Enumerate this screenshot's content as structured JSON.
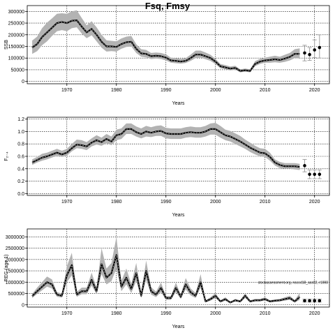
{
  "title": "Fsq, Fmsy",
  "chart_data": [
    {
      "id": "ssb",
      "type": "line",
      "xlabel": "Years",
      "ylabel": "SSB",
      "xlim": [
        1962,
        2023
      ],
      "ylim": [
        -10000,
        325000
      ],
      "xticks": [
        1970,
        1980,
        1990,
        2000,
        2010,
        2020
      ],
      "yticks": [
        0,
        50000,
        100000,
        150000,
        200000,
        250000,
        300000
      ],
      "grid": true,
      "years": [
        1963,
        1964,
        1965,
        1966,
        1967,
        1968,
        1969,
        1970,
        1971,
        1972,
        1973,
        1974,
        1975,
        1976,
        1977,
        1978,
        1979,
        1980,
        1981,
        1982,
        1983,
        1984,
        1985,
        1986,
        1987,
        1988,
        1989,
        1990,
        1991,
        1992,
        1993,
        1994,
        1995,
        1996,
        1997,
        1998,
        1999,
        2000,
        2001,
        2002,
        2003,
        2004,
        2005,
        2006,
        2007,
        2008,
        2009,
        2010,
        2011,
        2012,
        2013,
        2014,
        2015,
        2016,
        2017
      ],
      "estimate": [
        145000,
        160000,
        190000,
        210000,
        230000,
        250000,
        255000,
        250000,
        260000,
        262000,
        235000,
        210000,
        225000,
        200000,
        170000,
        150000,
        150000,
        148000,
        160000,
        168000,
        170000,
        140000,
        120000,
        118000,
        108000,
        110000,
        108000,
        102000,
        90000,
        88000,
        85000,
        88000,
        100000,
        115000,
        115000,
        108000,
        100000,
        85000,
        65000,
        60000,
        55000,
        58000,
        45000,
        48000,
        45000,
        75000,
        85000,
        90000,
        92000,
        95000,
        92000,
        98000,
        105000,
        118000,
        118000
      ],
      "lower": [
        118000,
        130000,
        155000,
        172000,
        195000,
        215000,
        220000,
        215000,
        228000,
        232000,
        205000,
        185000,
        198000,
        172000,
        145000,
        128000,
        130000,
        128000,
        140000,
        148000,
        150000,
        122000,
        106000,
        103000,
        96000,
        98000,
        96000,
        90000,
        80000,
        78000,
        76000,
        79000,
        88000,
        100000,
        102000,
        95000,
        88000,
        74000,
        56000,
        52000,
        47000,
        50000,
        39000,
        42000,
        39000,
        65000,
        75000,
        80000,
        80000,
        82000,
        80000,
        84000,
        90000,
        100000,
        98000
      ],
      "upper": [
        175000,
        192000,
        228000,
        252000,
        270000,
        290000,
        292000,
        290000,
        300000,
        305000,
        272000,
        240000,
        258000,
        232000,
        200000,
        176000,
        174000,
        172000,
        184000,
        192000,
        195000,
        160000,
        138000,
        135000,
        122000,
        124000,
        122000,
        116000,
        102000,
        100000,
        97000,
        100000,
        115000,
        132000,
        132000,
        124000,
        114000,
        97000,
        75000,
        70000,
        64000,
        67000,
        52000,
        55000,
        52000,
        87000,
        97000,
        102000,
        106000,
        110000,
        106000,
        114000,
        122000,
        138000,
        142000
      ],
      "projection_points": [
        {
          "x": 2018,
          "y": 122000
        },
        {
          "x": 2019,
          "y": 115000
        },
        {
          "x": 2020,
          "y": 135000
        },
        {
          "x": 2021,
          "y": 145000
        }
      ],
      "projection_ranges": [
        {
          "x": 2018,
          "lo": 88000,
          "hi": 155000
        },
        {
          "x": 2019,
          "lo": 90000,
          "hi": 145000
        },
        {
          "x": 2020,
          "lo": 102000,
          "hi": 178000
        },
        {
          "x": 2021,
          "lo": 100000,
          "hi": 200000
        }
      ]
    },
    {
      "id": "f",
      "type": "line",
      "xlabel": "Years",
      "ylabel": "F₂₋₄",
      "xlim": [
        1962,
        2023
      ],
      "ylim": [
        -0.03,
        1.23
      ],
      "xticks": [
        1970,
        1980,
        1990,
        2000,
        2010,
        2020
      ],
      "yticks": [
        0.0,
        0.2,
        0.4,
        0.6,
        0.8,
        1.0,
        1.2
      ],
      "ytick_labels": [
        "0.0",
        "0.2",
        "0.4",
        "0.6",
        "0.8",
        "1.0",
        "1.2"
      ],
      "grid": true,
      "years": [
        1963,
        1964,
        1965,
        1966,
        1967,
        1968,
        1969,
        1970,
        1971,
        1972,
        1973,
        1974,
        1975,
        1976,
        1977,
        1978,
        1979,
        1980,
        1981,
        1982,
        1983,
        1984,
        1985,
        1986,
        1987,
        1988,
        1989,
        1990,
        1991,
        1992,
        1993,
        1994,
        1995,
        1996,
        1997,
        1998,
        1999,
        2000,
        2001,
        2002,
        2003,
        2004,
        2005,
        2006,
        2007,
        2008,
        2009,
        2010,
        2011,
        2012,
        2013,
        2014,
        2015,
        2016,
        2017
      ],
      "estimate": [
        0.5,
        0.54,
        0.58,
        0.6,
        0.63,
        0.66,
        0.63,
        0.66,
        0.73,
        0.79,
        0.78,
        0.76,
        0.82,
        0.86,
        0.83,
        0.88,
        0.84,
        0.94,
        0.96,
        1.04,
        1.04,
        0.99,
        0.96,
        1.0,
        0.98,
        1.0,
        1.01,
        0.97,
        0.96,
        0.96,
        0.96,
        0.98,
        0.99,
        0.98,
        0.98,
        1.0,
        1.04,
        1.04,
        0.99,
        0.94,
        0.92,
        0.88,
        0.84,
        0.79,
        0.74,
        0.7,
        0.66,
        0.65,
        0.59,
        0.5,
        0.46,
        0.44,
        0.44,
        0.44,
        0.43
      ],
      "lower": [
        0.46,
        0.5,
        0.53,
        0.55,
        0.58,
        0.61,
        0.59,
        0.61,
        0.68,
        0.73,
        0.72,
        0.7,
        0.76,
        0.79,
        0.77,
        0.81,
        0.78,
        0.86,
        0.88,
        0.96,
        0.96,
        0.92,
        0.89,
        0.92,
        0.91,
        0.93,
        0.93,
        0.89,
        0.88,
        0.88,
        0.88,
        0.9,
        0.91,
        0.9,
        0.9,
        0.92,
        0.95,
        0.95,
        0.9,
        0.86,
        0.84,
        0.8,
        0.76,
        0.72,
        0.67,
        0.63,
        0.6,
        0.59,
        0.53,
        0.45,
        0.41,
        0.4,
        0.4,
        0.39,
        0.38
      ],
      "upper": [
        0.55,
        0.59,
        0.64,
        0.66,
        0.69,
        0.72,
        0.69,
        0.72,
        0.8,
        0.87,
        0.86,
        0.83,
        0.89,
        0.94,
        0.9,
        0.96,
        0.92,
        1.03,
        1.05,
        1.13,
        1.13,
        1.08,
        1.05,
        1.09,
        1.07,
        1.09,
        1.1,
        1.06,
        1.05,
        1.05,
        1.05,
        1.07,
        1.08,
        1.07,
        1.07,
        1.09,
        1.13,
        1.14,
        1.09,
        1.03,
        1.01,
        0.97,
        0.93,
        0.87,
        0.82,
        0.77,
        0.73,
        0.72,
        0.66,
        0.55,
        0.51,
        0.49,
        0.49,
        0.49,
        0.48
      ],
      "projection_points": [
        {
          "x": 2018,
          "y": 0.45
        },
        {
          "x": 2019,
          "y": 0.31
        },
        {
          "x": 2020,
          "y": 0.31
        },
        {
          "x": 2021,
          "y": 0.31
        }
      ],
      "projection_ranges": [
        {
          "x": 2018,
          "lo": 0.35,
          "hi": 0.55
        },
        {
          "x": 2019,
          "lo": 0.24,
          "hi": 0.38
        },
        {
          "x": 2020,
          "lo": 0.24,
          "hi": 0.38
        },
        {
          "x": 2021,
          "lo": 0.24,
          "hi": 0.38
        }
      ]
    },
    {
      "id": "rec",
      "type": "line",
      "xlabel": "Years",
      "ylabel": "REC (age 1)",
      "xlim": [
        1962,
        2023
      ],
      "ylim": [
        -100000,
        3350000
      ],
      "xticks": [
        1970,
        1980,
        1990,
        2000,
        2010,
        2020
      ],
      "yticks": [
        0,
        500000,
        1000000,
        1500000,
        2000000,
        2500000,
        3000000
      ],
      "grid": true,
      "note": "stockassessment.org, nscod18_ass02, r1008",
      "years": [
        1963,
        1964,
        1965,
        1966,
        1967,
        1968,
        1969,
        1970,
        1971,
        1972,
        1973,
        1974,
        1975,
        1976,
        1977,
        1978,
        1979,
        1980,
        1981,
        1982,
        1983,
        1984,
        1985,
        1986,
        1987,
        1988,
        1989,
        1990,
        1991,
        1992,
        1993,
        1994,
        1995,
        1996,
        1997,
        1998,
        1999,
        2000,
        2001,
        2002,
        2003,
        2004,
        2005,
        2006,
        2007,
        2008,
        2009,
        2010,
        2011,
        2012,
        2013,
        2014,
        2015,
        2016,
        2017
      ],
      "estimate": [
        380000,
        600000,
        800000,
        1000000,
        900000,
        450000,
        400000,
        1300000,
        1750000,
        450000,
        600000,
        600000,
        1100000,
        600000,
        1800000,
        1200000,
        1400000,
        2200000,
        800000,
        1200000,
        700000,
        1400000,
        400000,
        1500000,
        600000,
        450000,
        750000,
        300000,
        300000,
        750000,
        350000,
        900000,
        550000,
        400000,
        1000000,
        150000,
        250000,
        400000,
        150000,
        250000,
        100000,
        200000,
        150000,
        400000,
        150000,
        200000,
        200000,
        250000,
        150000,
        180000,
        200000,
        250000,
        300000,
        150000,
        350000
      ],
      "lower": [
        300000,
        480000,
        640000,
        800000,
        720000,
        360000,
        320000,
        1000000,
        1300000,
        350000,
        470000,
        470000,
        850000,
        470000,
        1350000,
        900000,
        1050000,
        1600000,
        600000,
        900000,
        520000,
        1050000,
        300000,
        1100000,
        450000,
        340000,
        560000,
        220000,
        220000,
        560000,
        260000,
        680000,
        410000,
        300000,
        750000,
        110000,
        180000,
        300000,
        110000,
        180000,
        70000,
        150000,
        110000,
        300000,
        110000,
        150000,
        150000,
        190000,
        110000,
        135000,
        150000,
        185000,
        220000,
        100000,
        220000
      ],
      "upper": [
        480000,
        760000,
        1000000,
        1250000,
        1120000,
        560000,
        500000,
        1700000,
        2300000,
        570000,
        760000,
        760000,
        1420000,
        760000,
        2500000,
        1600000,
        1850000,
        3000000,
        1050000,
        1600000,
        920000,
        1850000,
        520000,
        1950000,
        780000,
        580000,
        980000,
        390000,
        390000,
        980000,
        460000,
        1180000,
        720000,
        520000,
        1350000,
        200000,
        330000,
        520000,
        200000,
        330000,
        140000,
        260000,
        200000,
        520000,
        200000,
        260000,
        260000,
        330000,
        200000,
        240000,
        260000,
        330000,
        400000,
        210000,
        520000
      ],
      "projection_points": [
        {
          "x": 2018,
          "y": 180000
        },
        {
          "x": 2019,
          "y": 180000
        },
        {
          "x": 2020,
          "y": 180000
        },
        {
          "x": 2021,
          "y": 180000
        }
      ],
      "projection_ranges": [
        {
          "x": 2018,
          "lo": 120000,
          "hi": 250000
        },
        {
          "x": 2019,
          "lo": 120000,
          "hi": 250000
        },
        {
          "x": 2020,
          "lo": 120000,
          "hi": 250000
        },
        {
          "x": 2021,
          "lo": 120000,
          "hi": 250000
        }
      ]
    }
  ]
}
